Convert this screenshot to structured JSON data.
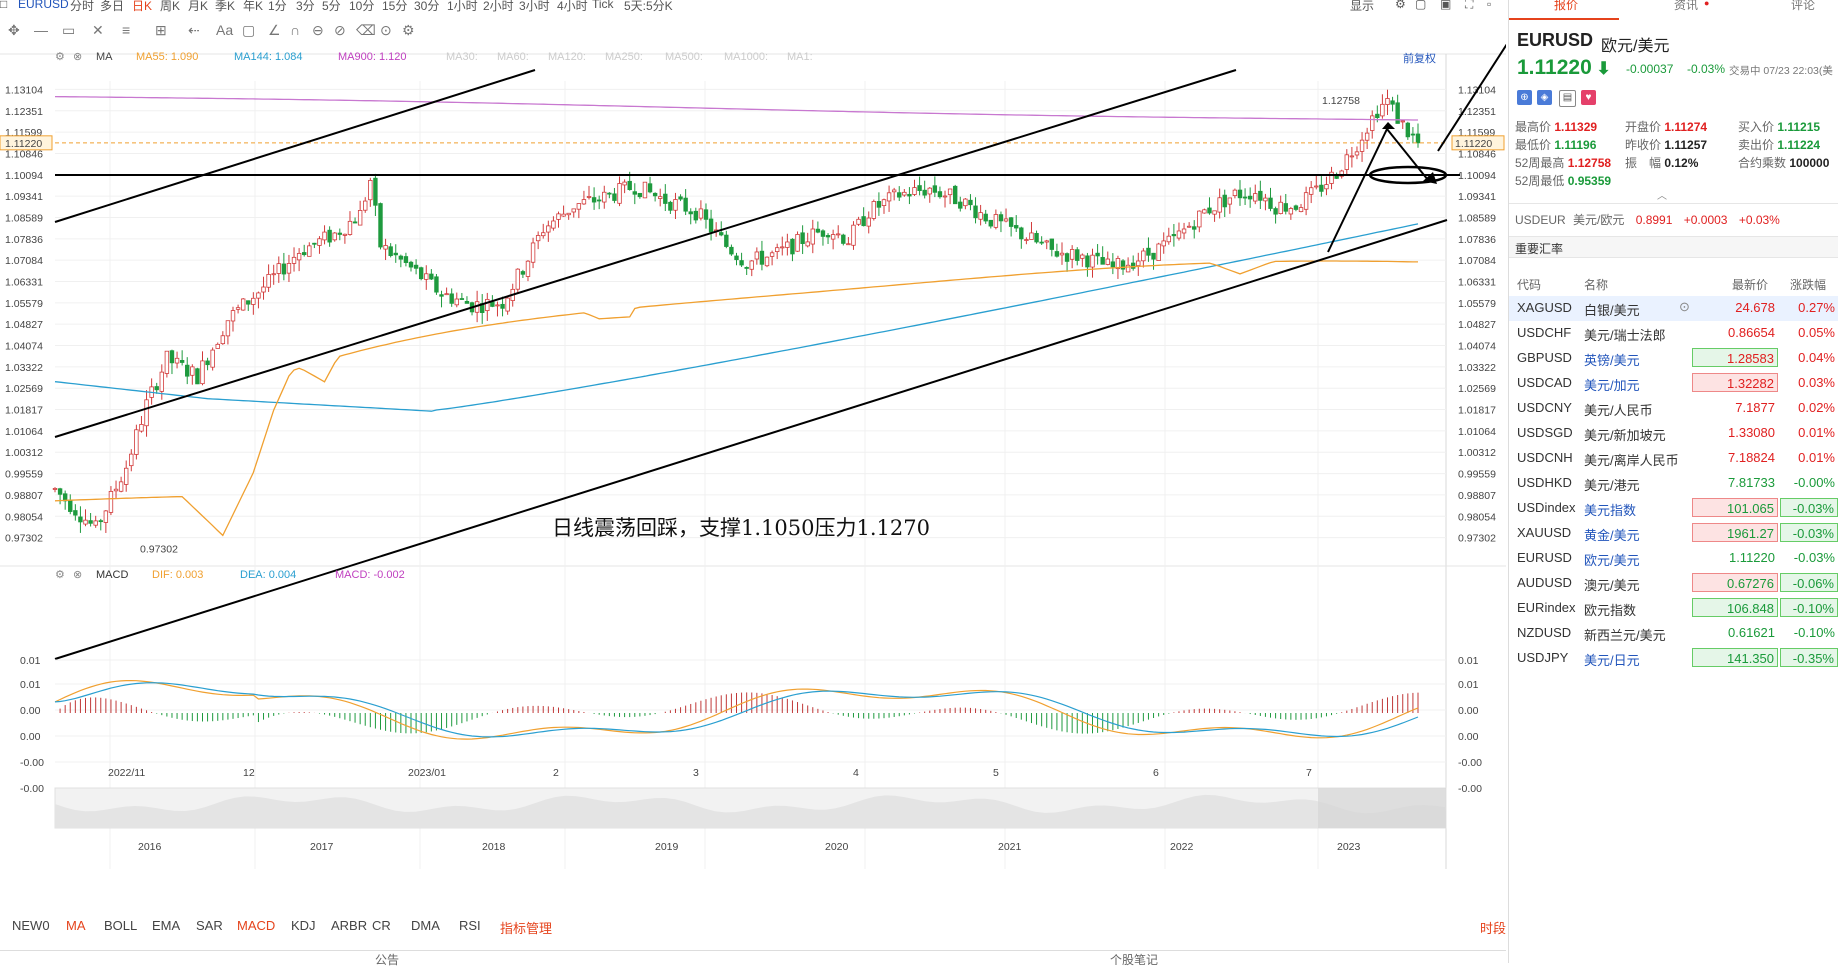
{
  "toolbar": {
    "symbol": "EURUSD",
    "periods": [
      "分时",
      "多日",
      "日K",
      "周K",
      "月K",
      "季K",
      "年K",
      "1分",
      "3分",
      "5分",
      "10分",
      "15分",
      "30分",
      "1小时",
      "2小时",
      "3小时",
      "4小时",
      "Tick",
      "5天:5分K"
    ],
    "selected_period": "日K",
    "display_label": "显示"
  },
  "main_chart": {
    "ma_legend": [
      {
        "label": "MA",
        "color": "#444444"
      },
      {
        "label": "MA55: 1.090",
        "color": "#f0a030"
      },
      {
        "label": "MA144: 1.084",
        "color": "#2a9fd0"
      },
      {
        "label": "MA900: 1.120",
        "color": "#c040c0"
      },
      {
        "label": "MA30:",
        "color": "#cccccc"
      },
      {
        "label": "MA60:",
        "color": "#cccccc"
      },
      {
        "label": "MA120:",
        "color": "#cccccc"
      },
      {
        "label": "MA250:",
        "color": "#cccccc"
      },
      {
        "label": "MA500:",
        "color": "#cccccc"
      },
      {
        "label": "MA1000:",
        "color": "#cccccc"
      },
      {
        "label": "MA1:",
        "color": "#cccccc"
      }
    ],
    "adjust_label": "前复权",
    "price_ticks": [
      "1.13104",
      "1.12351",
      "1.11599",
      "1.10846",
      "1.10094",
      "1.09341",
      "1.08589",
      "1.07836",
      "1.07084",
      "1.06331",
      "1.05579",
      "1.04827",
      "1.04074",
      "1.03322",
      "1.02569",
      "1.01817",
      "1.01064",
      "1.00312",
      "0.99559",
      "0.98807",
      "0.98054",
      "0.97302"
    ],
    "current_price_tag": "1.11220",
    "high_label": "1.12758",
    "low_label": "0.97302",
    "annotation": "日线震荡回踩，支撑1.1050压力1.1270",
    "x_ticks": [
      "2022/11",
      "12",
      "2023/01",
      "2",
      "3",
      "4",
      "5",
      "6",
      "7"
    ]
  },
  "macd": {
    "legend_name": "MACD",
    "dif": "DIF: 0.003",
    "dea": "DEA: 0.004",
    "macd": "MACD: -0.002",
    "ticks": [
      "0.01",
      "0.01",
      "0.00",
      "0.00",
      "-0.00",
      "-0.00"
    ]
  },
  "overview": {
    "years": [
      "2016",
      "2017",
      "2018",
      "2019",
      "2020",
      "2021",
      "2022",
      "2023"
    ]
  },
  "indicator_tabs": [
    "NEW0",
    "MA",
    "BOLL",
    "EMA",
    "SAR",
    "MACD",
    "KDJ",
    "ARBR",
    "CR",
    "DMA",
    "RSI",
    "指标管理"
  ],
  "indicator_selected": [
    "MA",
    "MACD"
  ],
  "time_share_label": "时段",
  "footer": {
    "left": "公告",
    "right": "个股笔记"
  },
  "right_panel": {
    "tabs": [
      "报价",
      "资讯",
      "评论"
    ],
    "symbol": "EURUSD",
    "name": "欧元/美元",
    "price": "1.11220",
    "change": "-0.00037",
    "change_pct": "-0.03%",
    "status": "交易中 07/23 22:03(美",
    "stats": [
      {
        "label": "最高价",
        "value": "1.11329",
        "color": "red"
      },
      {
        "label": "开盘价",
        "value": "1.11274",
        "color": "red"
      },
      {
        "label": "买入价",
        "value": "1.11215",
        "color": "green"
      },
      {
        "label": "最低价",
        "value": "1.11196",
        "color": "green"
      },
      {
        "label": "昨收价",
        "value": "1.11257",
        "color": "plain"
      },
      {
        "label": "卖出价",
        "value": "1.11224",
        "color": "green"
      },
      {
        "label": "52周最高",
        "value": "1.12758",
        "color": "red"
      },
      {
        "label": "振　幅",
        "value": "0.12%",
        "color": "plain"
      },
      {
        "label": "合约乘数",
        "value": "100000",
        "color": "plain"
      },
      {
        "label": "52周最低",
        "value": "0.95359",
        "color": "green"
      }
    ],
    "related": {
      "code": "USDEUR",
      "name": "美元/欧元",
      "price": "0.8991",
      "change": "+0.0003",
      "pct": "+0.03%"
    },
    "section_title": "重要汇率",
    "table_headers": [
      "代码",
      "名称",
      "最新价",
      "涨跌幅"
    ],
    "rows": [
      {
        "code": "XAGUSD",
        "name": "白银/美元",
        "price": "24.678",
        "pct": "0.27%",
        "name_blue": false,
        "box": "none",
        "pct_color": "red"
      },
      {
        "code": "USDCHF",
        "name": "美元/瑞士法郎",
        "price": "0.86654",
        "pct": "0.05%",
        "name_blue": false,
        "box": "none",
        "pct_color": "red"
      },
      {
        "code": "GBPUSD",
        "name": "英镑/美元",
        "price": "1.28583",
        "pct": "0.04%",
        "name_blue": true,
        "box": "green",
        "pct_color": "red"
      },
      {
        "code": "USDCAD",
        "name": "美元/加元",
        "price": "1.32282",
        "pct": "0.03%",
        "name_blue": true,
        "box": "red",
        "pct_color": "red"
      },
      {
        "code": "USDCNY",
        "name": "美元/人民币",
        "price": "7.1877",
        "pct": "0.02%",
        "name_blue": false,
        "box": "none",
        "pct_color": "red"
      },
      {
        "code": "USDSGD",
        "name": "美元/新加坡元",
        "price": "1.33080",
        "pct": "0.01%",
        "name_blue": false,
        "box": "none",
        "pct_color": "red"
      },
      {
        "code": "USDCNH",
        "name": "美元/离岸人民币",
        "price": "7.18824",
        "pct": "0.01%",
        "name_blue": false,
        "box": "none",
        "pct_color": "red"
      },
      {
        "code": "USDHKD",
        "name": "美元/港元",
        "price": "7.81733",
        "pct": "-0.00%",
        "name_blue": false,
        "box": "none",
        "pct_color": "green"
      },
      {
        "code": "USDindex",
        "name": "美元指数",
        "price": "101.065",
        "pct": "-0.03%",
        "name_blue": true,
        "box": "red",
        "pct_color": "green"
      },
      {
        "code": "XAUUSD",
        "name": "黄金/美元",
        "price": "1961.27",
        "pct": "-0.03%",
        "name_blue": true,
        "box": "red",
        "pct_color": "green"
      },
      {
        "code": "EURUSD",
        "name": "欧元/美元",
        "price": "1.11220",
        "pct": "-0.03%",
        "name_blue": true,
        "box": "none",
        "pct_color": "green"
      },
      {
        "code": "AUDUSD",
        "name": "澳元/美元",
        "price": "0.67276",
        "pct": "-0.06%",
        "name_blue": false,
        "box": "red",
        "pct_color": "green"
      },
      {
        "code": "EURindex",
        "name": "欧元指数",
        "price": "106.848",
        "pct": "-0.10%",
        "name_blue": false,
        "box": "green",
        "pct_color": "green"
      },
      {
        "code": "NZDUSD",
        "name": "新西兰元/美元",
        "price": "0.61621",
        "pct": "-0.10%",
        "name_blue": false,
        "box": "none",
        "pct_color": "green"
      },
      {
        "code": "USDJPY",
        "name": "美元/日元",
        "price": "141.350",
        "pct": "-0.35%",
        "name_blue": true,
        "box": "green",
        "pct_color": "green"
      }
    ]
  },
  "chart_data": {
    "type": "candlestick",
    "title": "",
    "xlabel": "",
    "ylabel": "",
    "ylim": [
      0.969,
      1.134
    ],
    "x_range": [
      "2022/10",
      "2023/07"
    ],
    "candles_summary": {
      "low": 0.97302,
      "high": 1.12758,
      "last": 1.1122
    },
    "moving_averages": [
      {
        "name": "MA55",
        "value": 1.09,
        "color": "#f0a030"
      },
      {
        "name": "MA144",
        "value": 1.084,
        "color": "#2a9fd0"
      },
      {
        "name": "MA900",
        "value": 1.12,
        "color": "#c040c0"
      }
    ],
    "support": 1.105,
    "resistance": 1.127,
    "macd": {
      "dif": 0.003,
      "dea": 0.004,
      "macd": -0.002
    },
    "grid": true
  }
}
